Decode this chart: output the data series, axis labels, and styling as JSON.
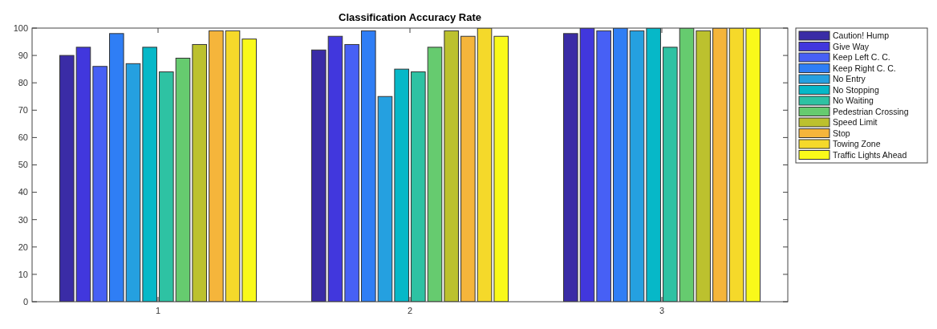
{
  "chart_data": {
    "type": "bar",
    "title": "Classification Accuracy Rate",
    "categories": [
      "1",
      "2",
      "3"
    ],
    "ylim": [
      0,
      100
    ],
    "yticks": [
      0,
      10,
      20,
      30,
      40,
      50,
      60,
      70,
      80,
      90,
      100
    ],
    "grid": false,
    "legend": "top right",
    "series": [
      {
        "name": "Caution! Hump",
        "color": "#3a2ca6",
        "values": [
          90,
          92,
          98
        ]
      },
      {
        "name": "Give Way",
        "color": "#4137dd",
        "values": [
          93,
          97,
          100
        ]
      },
      {
        "name": "Keep Left C. C.",
        "color": "#4760f5",
        "values": [
          86,
          94,
          99
        ]
      },
      {
        "name": "Keep Right C. C.",
        "color": "#2f7ef5",
        "values": [
          98,
          99,
          100
        ]
      },
      {
        "name": "No Entry",
        "color": "#25a0e0",
        "values": [
          87,
          75,
          99
        ]
      },
      {
        "name": "No Stopping",
        "color": "#06b8c8",
        "values": [
          93,
          85,
          100
        ]
      },
      {
        "name": "No Waiting",
        "color": "#2ec2a3",
        "values": [
          84,
          84,
          93
        ]
      },
      {
        "name": "Pedestrian Crossing",
        "color": "#66cb6f",
        "values": [
          89,
          93,
          100
        ]
      },
      {
        "name": "Speed Limit",
        "color": "#bcc12e",
        "values": [
          94,
          99,
          99
        ]
      },
      {
        "name": "Stop",
        "color": "#f5b53b",
        "values": [
          99,
          97,
          100
        ]
      },
      {
        "name": "Towing Zone",
        "color": "#f5d92a",
        "values": [
          99,
          100,
          100
        ]
      },
      {
        "name": "Traffic Lights Ahead",
        "color": "#f9f91a",
        "values": [
          96,
          97,
          100
        ]
      }
    ]
  }
}
